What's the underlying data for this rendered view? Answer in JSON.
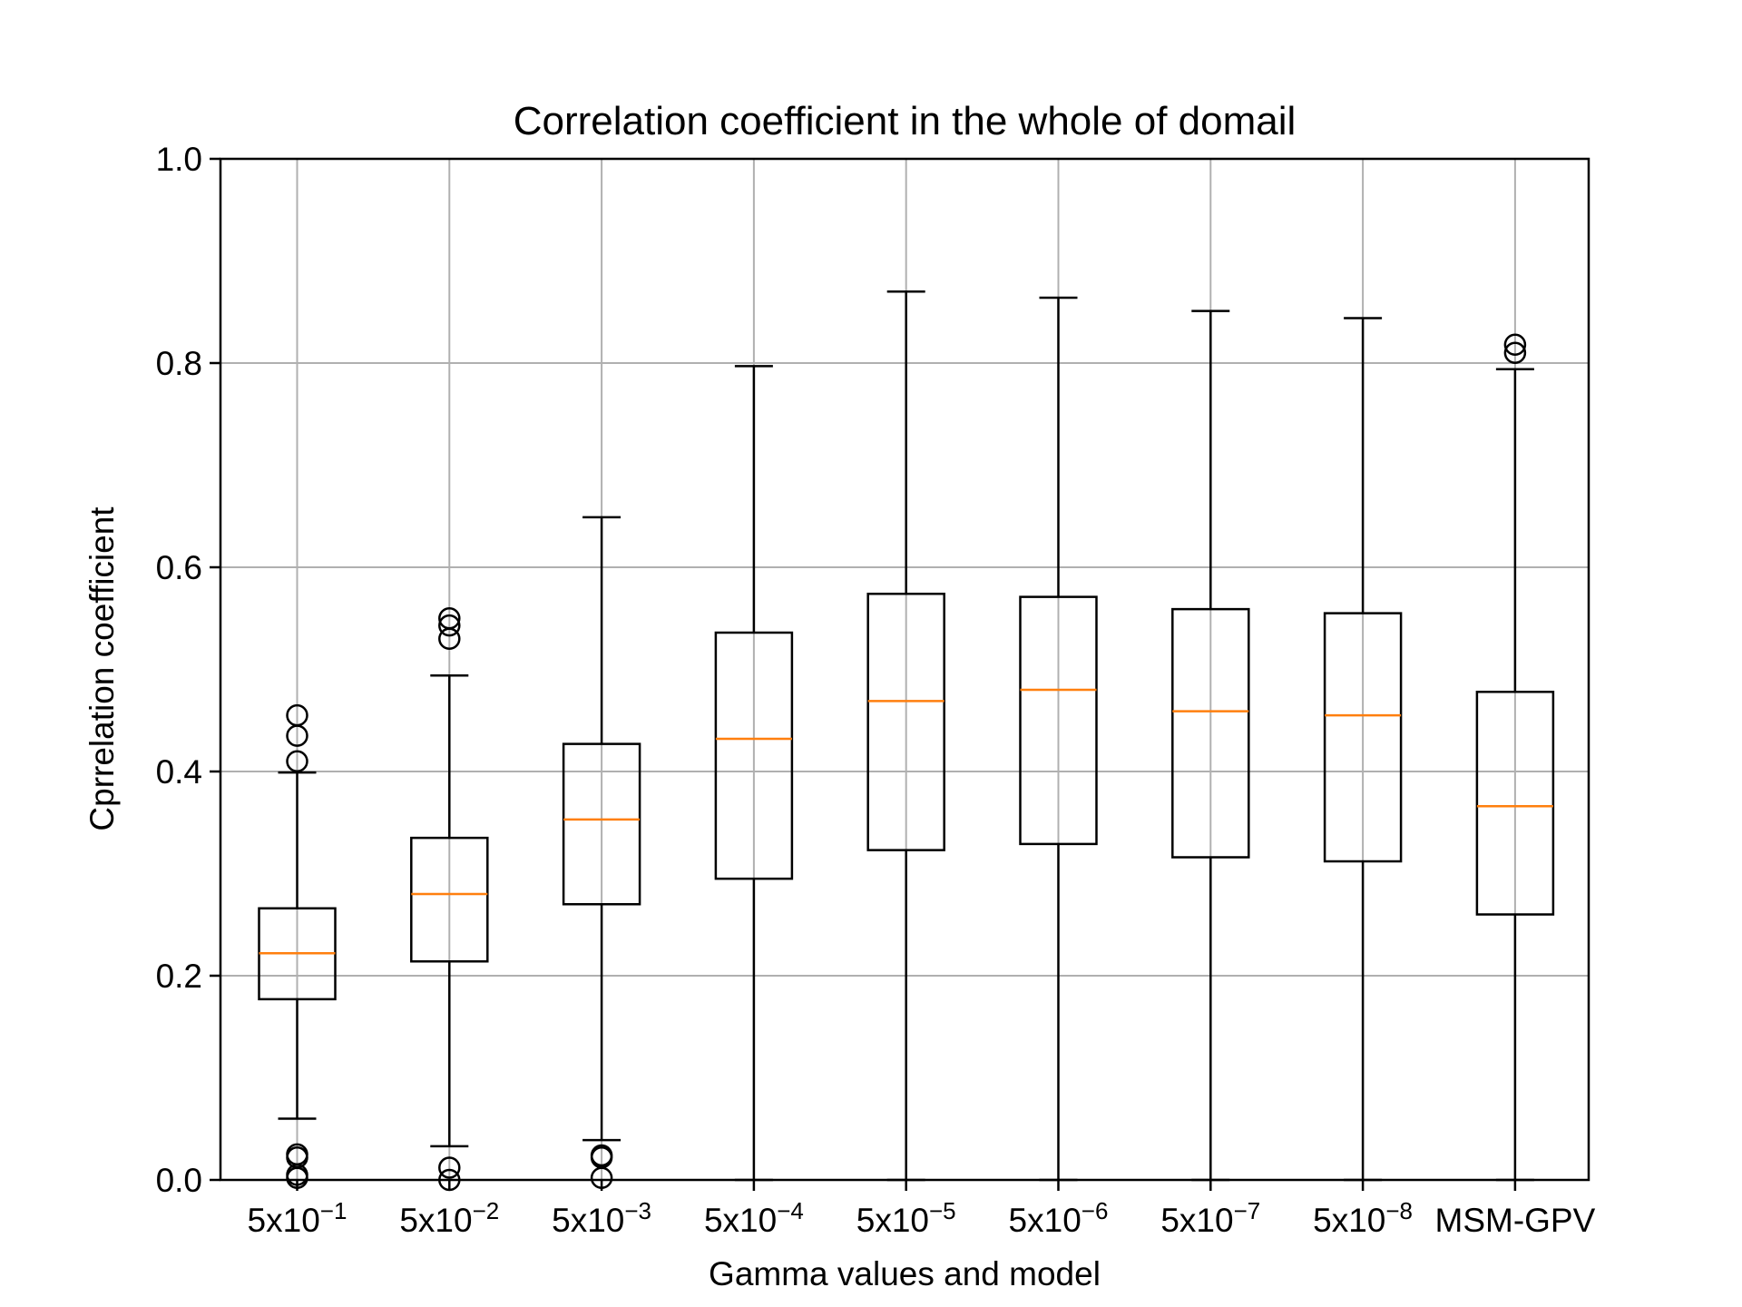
{
  "chart_data": {
    "type": "box",
    "title": "Correlation coefficient in the whole of domail",
    "xlabel": "Gamma values and model",
    "ylabel": "Cprrelation coefficient",
    "ylim": [
      0,
      1
    ],
    "yticks": [
      "0.0",
      "0.2",
      "0.4",
      "0.6",
      "0.8",
      "1.0"
    ],
    "grid": true,
    "categories": [
      {
        "base": "5x10",
        "exp": "−1"
      },
      {
        "base": "5x10",
        "exp": "−2"
      },
      {
        "base": "5x10",
        "exp": "−3"
      },
      {
        "base": "5x10",
        "exp": "−4"
      },
      {
        "base": "5x10",
        "exp": "−5"
      },
      {
        "base": "5x10",
        "exp": "−6"
      },
      {
        "base": "5x10",
        "exp": "−7"
      },
      {
        "base": "5x10",
        "exp": "−8"
      },
      {
        "base": "MSM-GPV",
        "exp": ""
      }
    ],
    "boxes": [
      {
        "whislo": 0.06,
        "q1": 0.177,
        "med": 0.222,
        "q3": 0.266,
        "whishi": 0.399,
        "fliers": [
          0.41,
          0.435,
          0.455,
          0.025,
          0.022,
          0.005,
          0.002
        ]
      },
      {
        "whislo": 0.033,
        "q1": 0.214,
        "med": 0.28,
        "q3": 0.335,
        "whishi": 0.494,
        "fliers": [
          0.53,
          0.543,
          0.55,
          0.012,
          0.0
        ]
      },
      {
        "whislo": 0.039,
        "q1": 0.27,
        "med": 0.353,
        "q3": 0.427,
        "whishi": 0.649,
        "fliers": [
          0.024,
          0.022,
          0.002
        ]
      },
      {
        "whislo": 0.0,
        "q1": 0.295,
        "med": 0.432,
        "q3": 0.536,
        "whishi": 0.797,
        "fliers": []
      },
      {
        "whislo": 0.0,
        "q1": 0.323,
        "med": 0.469,
        "q3": 0.574,
        "whishi": 0.87,
        "fliers": []
      },
      {
        "whislo": 0.0,
        "q1": 0.329,
        "med": 0.48,
        "q3": 0.571,
        "whishi": 0.864,
        "fliers": []
      },
      {
        "whislo": 0.0,
        "q1": 0.316,
        "med": 0.459,
        "q3": 0.559,
        "whishi": 0.851,
        "fliers": []
      },
      {
        "whislo": 0.0,
        "q1": 0.312,
        "med": 0.455,
        "q3": 0.555,
        "whishi": 0.844,
        "fliers": []
      },
      {
        "whislo": 0.0,
        "q1": 0.26,
        "med": 0.366,
        "q3": 0.478,
        "whishi": 0.794,
        "fliers": [
          0.81,
          0.818
        ]
      }
    ],
    "colors": {
      "box": "#000000",
      "median": "#ff7f0e",
      "grid": "#b0b0b0"
    }
  }
}
